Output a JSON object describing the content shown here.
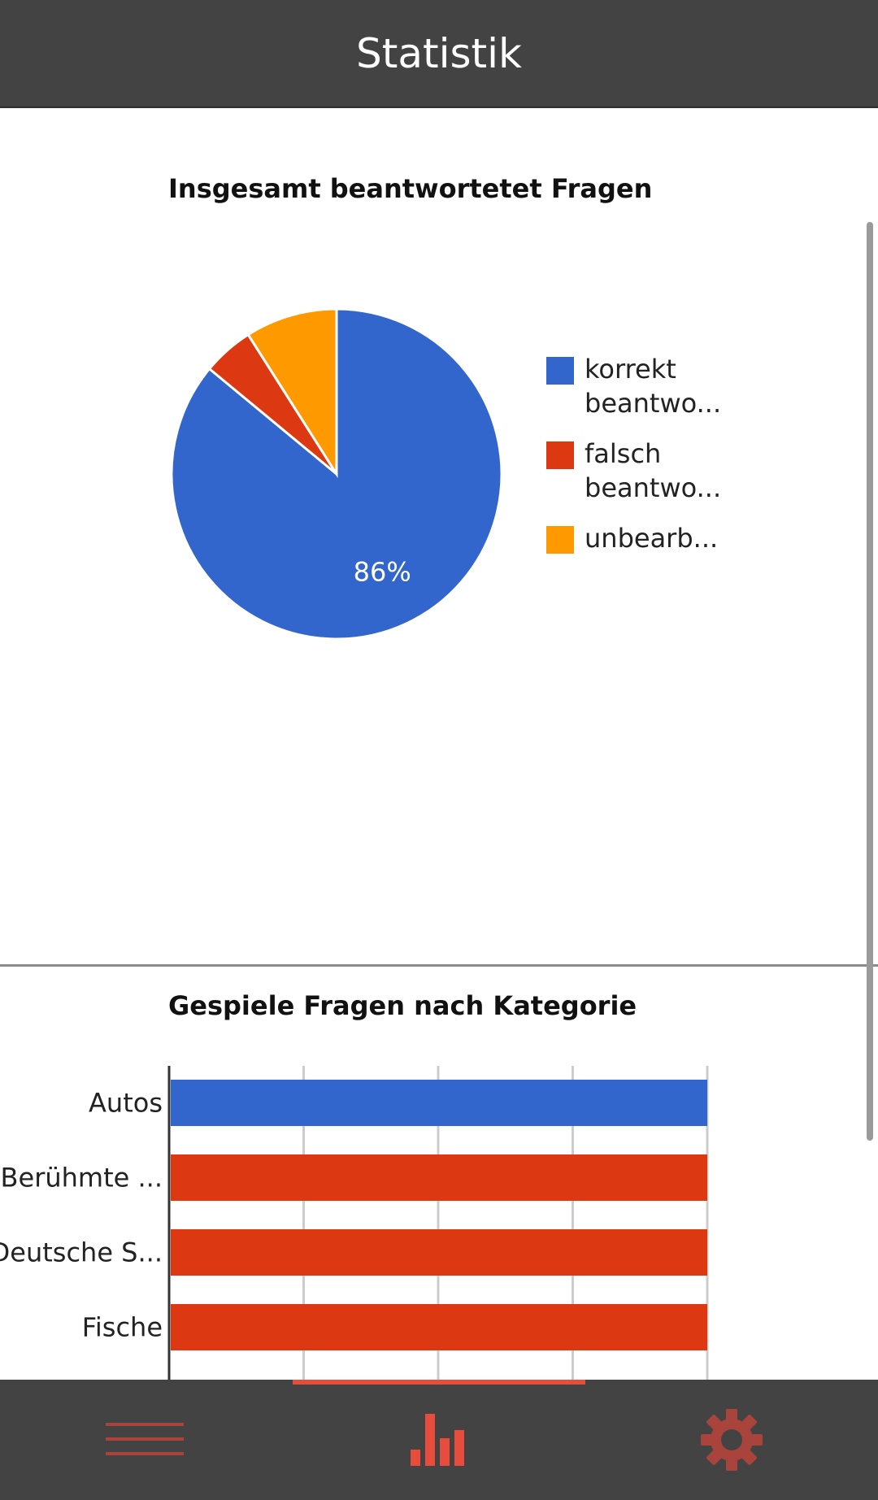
{
  "header": {
    "title": "Statistik"
  },
  "pie": {
    "title": "Insgesamt beantwortetet Fragen",
    "percent_label": "86%",
    "legend": [
      {
        "label": "korrekt beantwo...",
        "line1": "korrekt",
        "line2": "beantwo...",
        "color": "#3366cc"
      },
      {
        "label": "falsch beantwo...",
        "line1": "falsch",
        "line2": "beantwo...",
        "color": "#dc3912"
      },
      {
        "label": "unbearb...",
        "line1": "unbearb...",
        "line2": "",
        "color": "#ff9900"
      }
    ]
  },
  "bars": {
    "title": "Gespiele Fragen nach Kategorie",
    "colors": {
      "first": "#3366cc",
      "rest": "#dc3912"
    }
  },
  "chart_data": [
    {
      "type": "pie",
      "title": "Insgesamt beantwortetet Fragen",
      "labels": [
        "korrekt beantwo...",
        "falsch beantwo...",
        "unbearb..."
      ],
      "values": [
        86,
        5,
        9
      ],
      "colors": [
        "#3366cc",
        "#dc3912",
        "#ff9900"
      ],
      "slice_labels": [
        "86%",
        "",
        ""
      ],
      "legend": "right"
    },
    {
      "type": "bar",
      "orientation": "horizontal",
      "title": "Gespiele Fragen nach Kategorie",
      "categories": [
        "Autos",
        "Berühmte ...",
        "Deutsche S...",
        "Fische"
      ],
      "values": [
        1,
        1,
        1,
        1
      ],
      "xlim": [
        0,
        1
      ],
      "grid": true,
      "colors": [
        "#3366cc",
        "#dc3912",
        "#dc3912",
        "#dc3912"
      ]
    }
  ],
  "footer": {
    "items": [
      {
        "name": "menu",
        "icon": "menu-icon"
      },
      {
        "name": "statistics",
        "icon": "bar-chart-icon",
        "active": true
      },
      {
        "name": "settings",
        "icon": "gear-icon"
      }
    ],
    "active_color": "#e84c3d",
    "inactive_color": "#a8443c"
  }
}
